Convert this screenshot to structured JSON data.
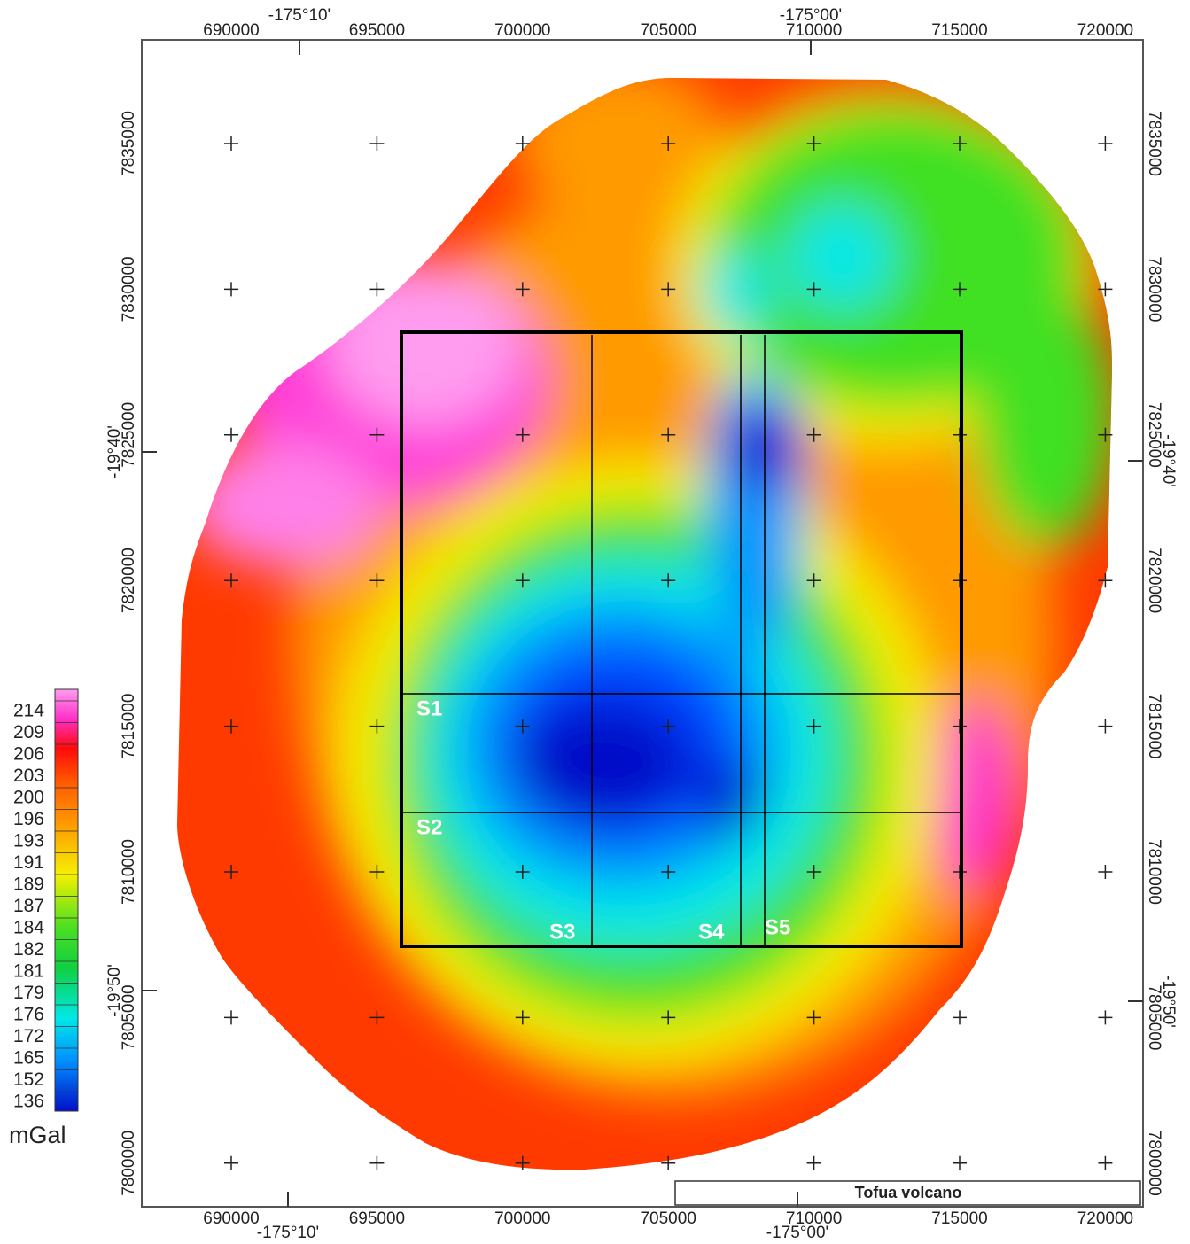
{
  "map": {
    "title": "Tofua volcano",
    "eastings": [
      690000,
      695000,
      700000,
      705000,
      710000,
      715000,
      720000
    ],
    "northings": [
      7835000,
      7830000,
      7825000,
      7820000,
      7815000,
      7810000,
      7805000,
      7800000
    ],
    "longitudes": [
      "-175°10'",
      "-175°00'"
    ],
    "latitudes": [
      "-19°40'",
      "-19°50'"
    ],
    "profiles": [
      "S1",
      "S2",
      "S3",
      "S4",
      "S5"
    ],
    "legend": {
      "unit": "mGal",
      "levels": [
        214,
        209,
        206,
        203,
        200,
        196,
        193,
        191,
        189,
        187,
        184,
        182,
        181,
        179,
        176,
        172,
        165,
        152,
        136
      ]
    }
  }
}
